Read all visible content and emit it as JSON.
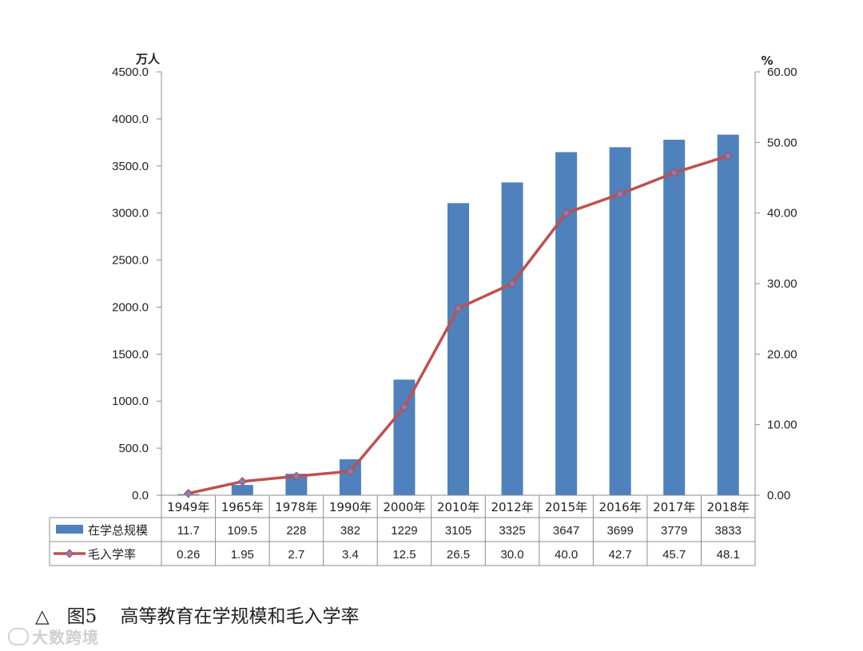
{
  "chart_data": {
    "type": "bar",
    "categories": [
      "1949年",
      "1965年",
      "1978年",
      "1990年",
      "2000年",
      "2010年",
      "2012年",
      "2015年",
      "2016年",
      "2017年",
      "2018年"
    ],
    "series": [
      {
        "name": "在学总规模",
        "type": "bar",
        "axis": "left",
        "color": "#4f81bd",
        "values": [
          11.7,
          109.5,
          228,
          382,
          1229,
          3105,
          3325,
          3647,
          3699,
          3779,
          3833
        ],
        "display": [
          "11.7",
          "109.5",
          "228",
          "382",
          "1229",
          "3105",
          "3325",
          "3647",
          "3699",
          "3779",
          "3833"
        ]
      },
      {
        "name": "毛入学率",
        "type": "line",
        "axis": "right",
        "color": "#c0504d",
        "values": [
          0.26,
          1.95,
          2.7,
          3.4,
          12.5,
          26.5,
          30.0,
          40.0,
          42.7,
          45.7,
          48.1
        ],
        "display": [
          "0.26",
          "1.95",
          "2.7",
          "3.4",
          "12.5",
          "26.5",
          "30.0",
          "40.0",
          "42.7",
          "45.7",
          "48.1"
        ]
      }
    ],
    "ylabel": "万人",
    "ylim": [
      0,
      4500
    ],
    "yticks": [
      "0.0",
      "500.0",
      "1000.0",
      "1500.0",
      "2000.0",
      "2500.0",
      "3000.0",
      "3500.0",
      "4000.0",
      "4500.0"
    ],
    "y2label": "%",
    "y2lim": [
      0,
      60
    ],
    "y2ticks": [
      "0.00",
      "10.00",
      "20.00",
      "30.00",
      "40.00",
      "50.00",
      "60.00"
    ],
    "grid": false,
    "legend": "data-table"
  },
  "caption": "△   图5    高等教育在学规模和毛入学率",
  "watermark": "大数跨境"
}
